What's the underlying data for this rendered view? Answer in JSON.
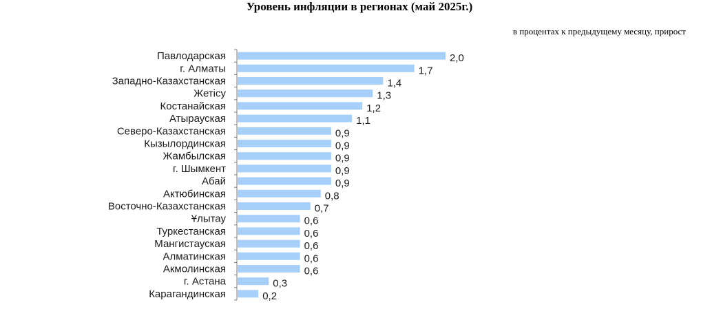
{
  "chart_data": {
    "type": "bar",
    "orientation": "horizontal",
    "title": "Уровень инфляции в регионах (май 2025г.)",
    "subtitle": "в процентах к предыдущему месяцу, прирост",
    "categories": [
      "Павлодарская",
      "г. Алматы",
      "Западно-Казахстанская",
      "Жетісу",
      "Костанайская",
      "Атырауская",
      "Северо-Казахстанская",
      "Кызылординская",
      "Жамбылская",
      "г. Шымкент",
      "Абай",
      "Актюбинская",
      "Восточно-Казахстанская",
      "Ұлытау",
      "Туркестанская",
      "Мангистауская",
      "Алматинская",
      "Акмолинская",
      "г. Астана",
      "Карагандинская"
    ],
    "values": [
      2.0,
      1.7,
      1.4,
      1.3,
      1.2,
      1.1,
      0.9,
      0.9,
      0.9,
      0.9,
      0.9,
      0.8,
      0.7,
      0.6,
      0.6,
      0.6,
      0.6,
      0.6,
      0.3,
      0.2
    ],
    "value_labels": [
      "2,0",
      "1,7",
      "1,4",
      "1,3",
      "1,2",
      "1,1",
      "0,9",
      "0,9",
      "0,9",
      "0,9",
      "0,9",
      "0,8",
      "0,7",
      "0,6",
      "0,6",
      "0,6",
      "0,6",
      "0,6",
      "0,3",
      "0,2"
    ],
    "xlim": [
      0,
      2.0
    ],
    "grid": false,
    "bar_color": "#a6d0fa",
    "axis_color": "#7f7f7f"
  }
}
